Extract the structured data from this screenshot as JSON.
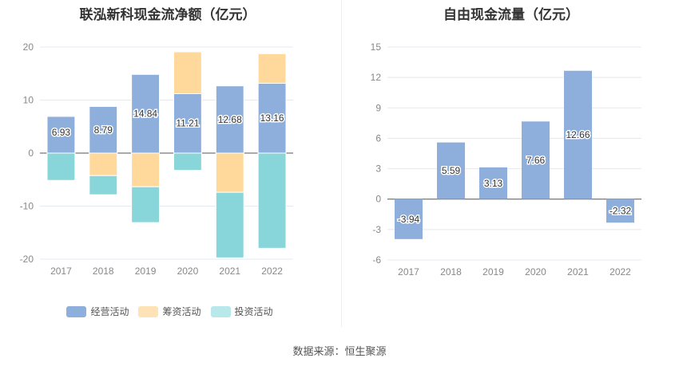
{
  "chart_data": [
    {
      "type": "bar",
      "stacked": true,
      "title": "联泓新科现金流净额（亿元）",
      "categories": [
        "2017",
        "2018",
        "2019",
        "2020",
        "2021",
        "2022"
      ],
      "ylim": [
        -20,
        20
      ],
      "yticks": [
        -20,
        -10,
        0,
        10,
        20
      ],
      "grid": true,
      "legend_position": "bottom",
      "series": [
        {
          "name": "经营活动",
          "color": "#8eaedc",
          "values": [
            6.93,
            8.79,
            14.84,
            11.21,
            12.68,
            13.16
          ],
          "labels": true
        },
        {
          "name": "筹资活动",
          "color": "#ffd99b",
          "values": [
            0.17,
            -4.25,
            -6.35,
            7.89,
            -7.4,
            5.59
          ]
        },
        {
          "name": "投资活动",
          "color": "#88d6d9",
          "values": [
            -5.15,
            -3.6,
            -6.75,
            -3.25,
            -12.35,
            -17.95
          ]
        }
      ]
    },
    {
      "type": "bar",
      "title": "自由现金流量（亿元）",
      "categories": [
        "2017",
        "2018",
        "2019",
        "2020",
        "2021",
        "2022"
      ],
      "values": [
        -3.94,
        5.59,
        3.13,
        7.66,
        12.66,
        -2.32
      ],
      "ylim": [
        -6,
        15
      ],
      "yticks": [
        -6,
        -3,
        0,
        3,
        6,
        9,
        12,
        15
      ],
      "grid": true,
      "color": "#8eaedc"
    }
  ],
  "source": "数据来源：恒生聚源"
}
